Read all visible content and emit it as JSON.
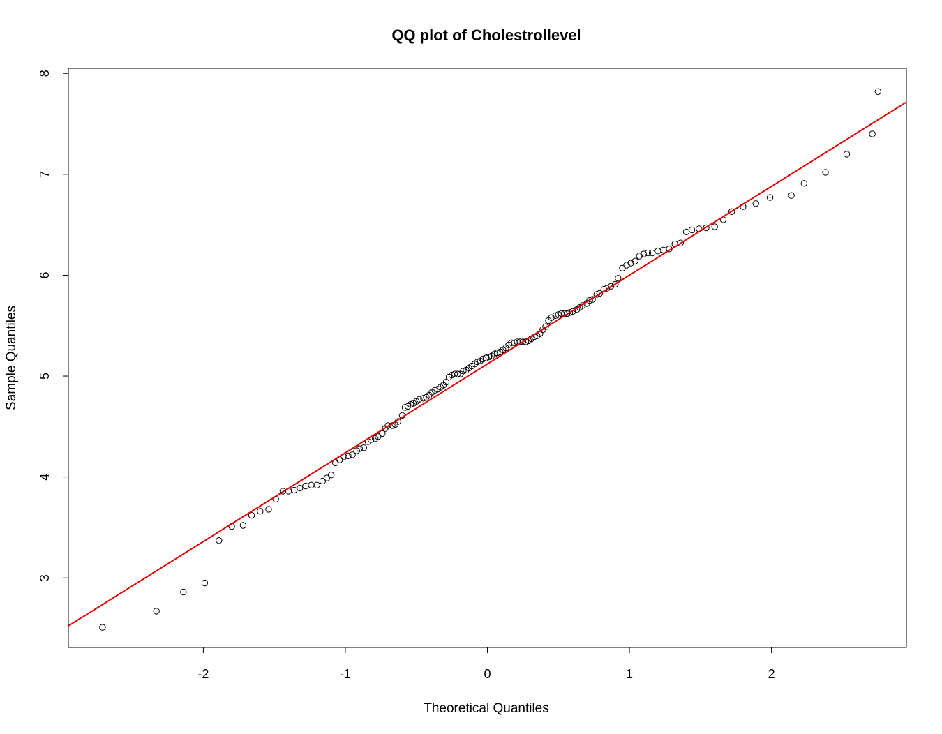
{
  "chart_data": {
    "type": "scatter",
    "title": "QQ plot of Cholestrollevel",
    "xlabel": "Theoretical Quantiles",
    "ylabel": "Sample Quantiles",
    "xlim": [
      -2.95,
      2.95
    ],
    "ylim": [
      2.31,
      8.05
    ],
    "xticks": [
      -2,
      -1,
      0,
      1,
      2
    ],
    "yticks": [
      3,
      4,
      5,
      6,
      7,
      8
    ],
    "grid": false,
    "legend": "none",
    "point_color": "#000000",
    "line_color": "#e00000",
    "reference_line": {
      "intercept": 5.12,
      "slope": 0.88
    },
    "points": [
      [
        -2.71,
        2.51
      ],
      [
        -2.33,
        2.67
      ],
      [
        -2.14,
        2.86
      ],
      [
        -1.99,
        2.95
      ],
      [
        -1.89,
        3.37
      ],
      [
        -1.8,
        3.51
      ],
      [
        -1.72,
        3.52
      ],
      [
        -1.66,
        3.62
      ],
      [
        -1.6,
        3.66
      ],
      [
        -1.54,
        3.68
      ],
      [
        -1.49,
        3.78
      ],
      [
        -1.44,
        3.86
      ],
      [
        -1.4,
        3.86
      ],
      [
        -1.36,
        3.87
      ],
      [
        -1.32,
        3.89
      ],
      [
        -1.28,
        3.91
      ],
      [
        -1.24,
        3.92
      ],
      [
        -1.2,
        3.92
      ],
      [
        -1.16,
        3.96
      ],
      [
        -1.13,
        3.99
      ],
      [
        -1.1,
        4.02
      ],
      [
        -1.07,
        4.14
      ],
      [
        -1.04,
        4.17
      ],
      [
        -1.01,
        4.2
      ],
      [
        -0.98,
        4.21
      ],
      [
        -0.95,
        4.22
      ],
      [
        -0.92,
        4.26
      ],
      [
        -0.9,
        4.28
      ],
      [
        -0.87,
        4.29
      ],
      [
        -0.84,
        4.35
      ],
      [
        -0.82,
        4.37
      ],
      [
        -0.79,
        4.38
      ],
      [
        -0.77,
        4.4
      ],
      [
        -0.74,
        4.43
      ],
      [
        -0.72,
        4.48
      ],
      [
        -0.7,
        4.51
      ],
      [
        -0.67,
        4.51
      ],
      [
        -0.65,
        4.52
      ],
      [
        -0.63,
        4.55
      ],
      [
        -0.6,
        4.61
      ],
      [
        -0.58,
        4.69
      ],
      [
        -0.56,
        4.7
      ],
      [
        -0.54,
        4.72
      ],
      [
        -0.52,
        4.73
      ],
      [
        -0.5,
        4.75
      ],
      [
        -0.48,
        4.77
      ],
      [
        -0.45,
        4.78
      ],
      [
        -0.43,
        4.79
      ],
      [
        -0.41,
        4.81
      ],
      [
        -0.39,
        4.84
      ],
      [
        -0.37,
        4.86
      ],
      [
        -0.35,
        4.87
      ],
      [
        -0.33,
        4.89
      ],
      [
        -0.31,
        4.91
      ],
      [
        -0.29,
        4.94
      ],
      [
        -0.27,
        4.99
      ],
      [
        -0.25,
        5.01
      ],
      [
        -0.23,
        5.02
      ],
      [
        -0.21,
        5.02
      ],
      [
        -0.19,
        5.02
      ],
      [
        -0.17,
        5.05
      ],
      [
        -0.15,
        5.06
      ],
      [
        -0.13,
        5.08
      ],
      [
        -0.11,
        5.1
      ],
      [
        -0.09,
        5.12
      ],
      [
        -0.07,
        5.14
      ],
      [
        -0.05,
        5.15
      ],
      [
        -0.03,
        5.17
      ],
      [
        -0.01,
        5.18
      ],
      [
        0.01,
        5.19
      ],
      [
        0.03,
        5.2
      ],
      [
        0.05,
        5.22
      ],
      [
        0.07,
        5.23
      ],
      [
        0.09,
        5.24
      ],
      [
        0.11,
        5.26
      ],
      [
        0.13,
        5.28
      ],
      [
        0.15,
        5.31
      ],
      [
        0.17,
        5.33
      ],
      [
        0.19,
        5.33
      ],
      [
        0.21,
        5.34
      ],
      [
        0.23,
        5.34
      ],
      [
        0.25,
        5.34
      ],
      [
        0.27,
        5.34
      ],
      [
        0.29,
        5.35
      ],
      [
        0.31,
        5.37
      ],
      [
        0.33,
        5.39
      ],
      [
        0.35,
        5.4
      ],
      [
        0.37,
        5.42
      ],
      [
        0.39,
        5.46
      ],
      [
        0.41,
        5.49
      ],
      [
        0.43,
        5.55
      ],
      [
        0.45,
        5.58
      ],
      [
        0.48,
        5.6
      ],
      [
        0.5,
        5.61
      ],
      [
        0.52,
        5.62
      ],
      [
        0.54,
        5.62
      ],
      [
        0.56,
        5.62
      ],
      [
        0.58,
        5.63
      ],
      [
        0.6,
        5.64
      ],
      [
        0.63,
        5.66
      ],
      [
        0.65,
        5.68
      ],
      [
        0.67,
        5.7
      ],
      [
        0.7,
        5.72
      ],
      [
        0.72,
        5.75
      ],
      [
        0.74,
        5.76
      ],
      [
        0.77,
        5.81
      ],
      [
        0.79,
        5.82
      ],
      [
        0.82,
        5.86
      ],
      [
        0.84,
        5.87
      ],
      [
        0.87,
        5.89
      ],
      [
        0.9,
        5.91
      ],
      [
        0.92,
        5.97
      ],
      [
        0.95,
        6.07
      ],
      [
        0.98,
        6.1
      ],
      [
        1.01,
        6.12
      ],
      [
        1.04,
        6.14
      ],
      [
        1.07,
        6.19
      ],
      [
        1.1,
        6.21
      ],
      [
        1.13,
        6.22
      ],
      [
        1.16,
        6.22
      ],
      [
        1.2,
        6.24
      ],
      [
        1.24,
        6.25
      ],
      [
        1.28,
        6.26
      ],
      [
        1.32,
        6.31
      ],
      [
        1.36,
        6.32
      ],
      [
        1.4,
        6.43
      ],
      [
        1.44,
        6.45
      ],
      [
        1.49,
        6.46
      ],
      [
        1.54,
        6.47
      ],
      [
        1.6,
        6.48
      ],
      [
        1.66,
        6.55
      ],
      [
        1.72,
        6.63
      ],
      [
        1.8,
        6.68
      ],
      [
        1.89,
        6.71
      ],
      [
        1.99,
        6.77
      ],
      [
        2.14,
        6.79
      ],
      [
        2.23,
        6.91
      ],
      [
        2.38,
        7.02
      ],
      [
        2.53,
        7.2
      ],
      [
        2.71,
        7.4
      ],
      [
        2.75,
        7.82
      ]
    ]
  }
}
